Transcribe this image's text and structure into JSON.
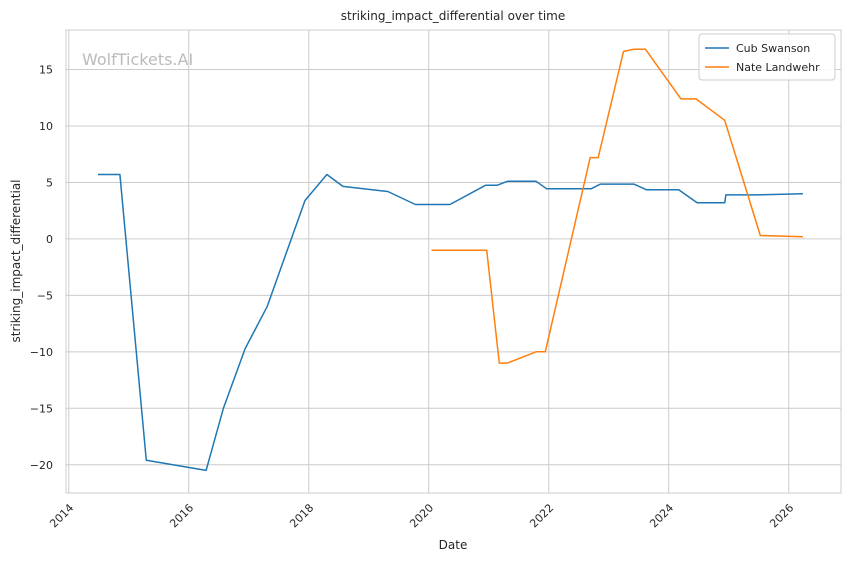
{
  "chart_data": {
    "type": "line",
    "title": "striking_impact_differential over time",
    "xlabel": "Date",
    "ylabel": "striking_impact_differential",
    "watermark": "WolfTickets.AI",
    "x_ticks": [
      "2014",
      "2016",
      "2018",
      "2020",
      "2022",
      "2024",
      "2026"
    ],
    "y_ticks": [
      -20,
      -15,
      -10,
      -5,
      0,
      5,
      10,
      15
    ],
    "xlim": [
      "2013-12-15",
      "2026-11-15"
    ],
    "ylim": [
      -22.5,
      18.5
    ],
    "grid": true,
    "legend_position": "top-right",
    "series": [
      {
        "name": "Cub Swanson",
        "color": "#1f77b4",
        "points": [
          [
            "2014-06-28",
            5.7
          ],
          [
            "2014-11-08",
            5.7
          ],
          [
            "2015-04-18",
            -19.6
          ],
          [
            "2016-04-16",
            -20.5
          ],
          [
            "2016-07-30",
            -15.0
          ],
          [
            "2016-12-10",
            -9.7
          ],
          [
            "2017-04-22",
            -6.0
          ],
          [
            "2017-12-09",
            3.4
          ],
          [
            "2018-04-21",
            5.7
          ],
          [
            "2018-07-28",
            4.65
          ],
          [
            "2019-04-27",
            4.2
          ],
          [
            "2019-10-12",
            3.05
          ],
          [
            "2020-05-09",
            3.05
          ],
          [
            "2020-12-12",
            4.75
          ],
          [
            "2021-02-20",
            4.75
          ],
          [
            "2021-04-24",
            5.1
          ],
          [
            "2021-10-16",
            5.1
          ],
          [
            "2021-12-18",
            4.45
          ],
          [
            "2022-09-17",
            4.45
          ],
          [
            "2022-11-12",
            4.85
          ],
          [
            "2023-06-03",
            4.85
          ],
          [
            "2023-08-19",
            4.35
          ],
          [
            "2024-03-02",
            4.35
          ],
          [
            "2024-06-22",
            3.2
          ],
          [
            "2024-12-07",
            3.2
          ],
          [
            "2024-12-14",
            3.9
          ],
          [
            "2025-06-14",
            3.9
          ],
          [
            "2026-03-28",
            4.0
          ]
        ]
      },
      {
        "name": "Nate Landwehr",
        "color": "#ff7f0e",
        "points": [
          [
            "2020-01-18",
            -1.0
          ],
          [
            "2020-12-19",
            -1.0
          ],
          [
            "2021-03-06",
            -11.0
          ],
          [
            "2021-04-24",
            -11.0
          ],
          [
            "2021-10-16",
            -10.0
          ],
          [
            "2021-12-11",
            -10.0
          ],
          [
            "2022-09-10",
            7.2
          ],
          [
            "2022-10-29",
            7.2
          ],
          [
            "2023-04-01",
            16.6
          ],
          [
            "2023-06-03",
            16.8
          ],
          [
            "2023-08-12",
            16.8
          ],
          [
            "2024-03-16",
            12.4
          ],
          [
            "2024-06-15",
            12.4
          ],
          [
            "2024-12-07",
            10.5
          ],
          [
            "2025-07-12",
            0.3
          ],
          [
            "2026-03-28",
            0.2
          ]
        ]
      }
    ]
  }
}
